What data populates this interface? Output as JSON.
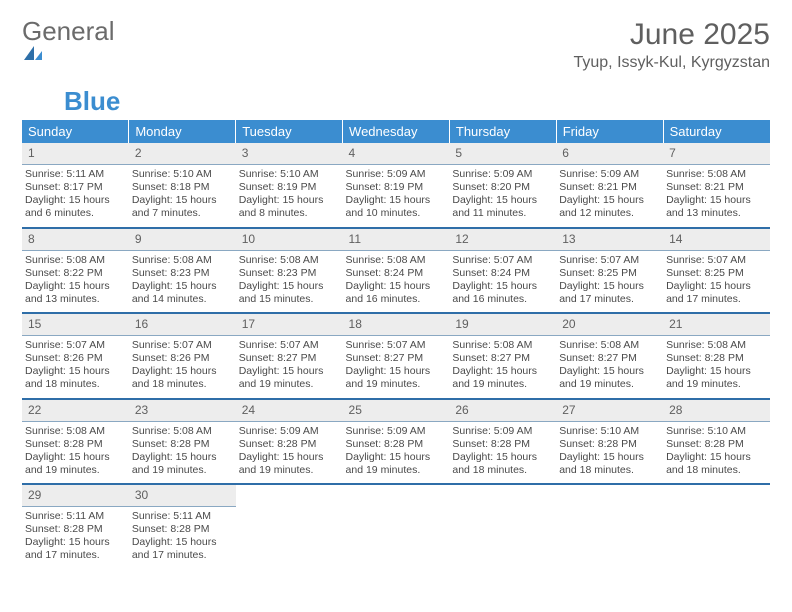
{
  "logo": {
    "text1": "General",
    "text2": "Blue"
  },
  "title": "June 2025",
  "location": "Tyup, Issyk-Kul, Kyrgyzstan",
  "colors": {
    "header_bg": "#3b8dd0",
    "header_text": "#ffffff",
    "daynum_bg": "#ededed",
    "daynum_border": "#8aa8c2",
    "week_sep": "#2f6ea8",
    "body_text": "#4a4a4a",
    "title_text": "#5f5f5f"
  },
  "weekdays": [
    "Sunday",
    "Monday",
    "Tuesday",
    "Wednesday",
    "Thursday",
    "Friday",
    "Saturday"
  ],
  "days": {
    "1": {
      "sunrise": "5:11 AM",
      "sunset": "8:17 PM",
      "daylight": "15 hours and 6 minutes."
    },
    "2": {
      "sunrise": "5:10 AM",
      "sunset": "8:18 PM",
      "daylight": "15 hours and 7 minutes."
    },
    "3": {
      "sunrise": "5:10 AM",
      "sunset": "8:19 PM",
      "daylight": "15 hours and 8 minutes."
    },
    "4": {
      "sunrise": "5:09 AM",
      "sunset": "8:19 PM",
      "daylight": "15 hours and 10 minutes."
    },
    "5": {
      "sunrise": "5:09 AM",
      "sunset": "8:20 PM",
      "daylight": "15 hours and 11 minutes."
    },
    "6": {
      "sunrise": "5:09 AM",
      "sunset": "8:21 PM",
      "daylight": "15 hours and 12 minutes."
    },
    "7": {
      "sunrise": "5:08 AM",
      "sunset": "8:21 PM",
      "daylight": "15 hours and 13 minutes."
    },
    "8": {
      "sunrise": "5:08 AM",
      "sunset": "8:22 PM",
      "daylight": "15 hours and 13 minutes."
    },
    "9": {
      "sunrise": "5:08 AM",
      "sunset": "8:23 PM",
      "daylight": "15 hours and 14 minutes."
    },
    "10": {
      "sunrise": "5:08 AM",
      "sunset": "8:23 PM",
      "daylight": "15 hours and 15 minutes."
    },
    "11": {
      "sunrise": "5:08 AM",
      "sunset": "8:24 PM",
      "daylight": "15 hours and 16 minutes."
    },
    "12": {
      "sunrise": "5:07 AM",
      "sunset": "8:24 PM",
      "daylight": "15 hours and 16 minutes."
    },
    "13": {
      "sunrise": "5:07 AM",
      "sunset": "8:25 PM",
      "daylight": "15 hours and 17 minutes."
    },
    "14": {
      "sunrise": "5:07 AM",
      "sunset": "8:25 PM",
      "daylight": "15 hours and 17 minutes."
    },
    "15": {
      "sunrise": "5:07 AM",
      "sunset": "8:26 PM",
      "daylight": "15 hours and 18 minutes."
    },
    "16": {
      "sunrise": "5:07 AM",
      "sunset": "8:26 PM",
      "daylight": "15 hours and 18 minutes."
    },
    "17": {
      "sunrise": "5:07 AM",
      "sunset": "8:27 PM",
      "daylight": "15 hours and 19 minutes."
    },
    "18": {
      "sunrise": "5:07 AM",
      "sunset": "8:27 PM",
      "daylight": "15 hours and 19 minutes."
    },
    "19": {
      "sunrise": "5:08 AM",
      "sunset": "8:27 PM",
      "daylight": "15 hours and 19 minutes."
    },
    "20": {
      "sunrise": "5:08 AM",
      "sunset": "8:27 PM",
      "daylight": "15 hours and 19 minutes."
    },
    "21": {
      "sunrise": "5:08 AM",
      "sunset": "8:28 PM",
      "daylight": "15 hours and 19 minutes."
    },
    "22": {
      "sunrise": "5:08 AM",
      "sunset": "8:28 PM",
      "daylight": "15 hours and 19 minutes."
    },
    "23": {
      "sunrise": "5:08 AM",
      "sunset": "8:28 PM",
      "daylight": "15 hours and 19 minutes."
    },
    "24": {
      "sunrise": "5:09 AM",
      "sunset": "8:28 PM",
      "daylight": "15 hours and 19 minutes."
    },
    "25": {
      "sunrise": "5:09 AM",
      "sunset": "8:28 PM",
      "daylight": "15 hours and 19 minutes."
    },
    "26": {
      "sunrise": "5:09 AM",
      "sunset": "8:28 PM",
      "daylight": "15 hours and 18 minutes."
    },
    "27": {
      "sunrise": "5:10 AM",
      "sunset": "8:28 PM",
      "daylight": "15 hours and 18 minutes."
    },
    "28": {
      "sunrise": "5:10 AM",
      "sunset": "8:28 PM",
      "daylight": "15 hours and 18 minutes."
    },
    "29": {
      "sunrise": "5:11 AM",
      "sunset": "8:28 PM",
      "daylight": "15 hours and 17 minutes."
    },
    "30": {
      "sunrise": "5:11 AM",
      "sunset": "8:28 PM",
      "daylight": "15 hours and 17 minutes."
    }
  },
  "labels": {
    "sunrise": "Sunrise: ",
    "sunset": "Sunset: ",
    "daylight": "Daylight: "
  },
  "layout": {
    "weeks": [
      [
        1,
        2,
        3,
        4,
        5,
        6,
        7
      ],
      [
        8,
        9,
        10,
        11,
        12,
        13,
        14
      ],
      [
        15,
        16,
        17,
        18,
        19,
        20,
        21
      ],
      [
        22,
        23,
        24,
        25,
        26,
        27,
        28
      ],
      [
        29,
        30,
        null,
        null,
        null,
        null,
        null
      ]
    ]
  }
}
